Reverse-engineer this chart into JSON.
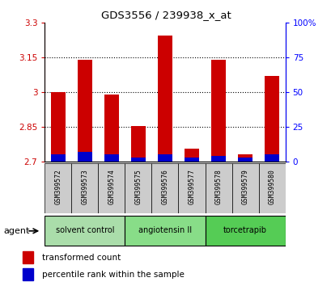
{
  "title": "GDS3556 / 239938_x_at",
  "samples": [
    "GSM399572",
    "GSM399573",
    "GSM399574",
    "GSM399575",
    "GSM399576",
    "GSM399577",
    "GSM399578",
    "GSM399579",
    "GSM399580"
  ],
  "red_values": [
    3.0,
    3.14,
    2.99,
    2.855,
    3.245,
    2.755,
    3.14,
    2.73,
    3.07
  ],
  "blue_values": [
    0.05,
    0.07,
    0.05,
    0.03,
    0.05,
    0.03,
    0.04,
    0.03,
    0.05
  ],
  "ylim_left": [
    2.7,
    3.3
  ],
  "ylim_right": [
    0.0,
    1.0
  ],
  "yticks_left": [
    2.7,
    2.85,
    3.0,
    3.15,
    3.3
  ],
  "yticks_right": [
    0.0,
    0.25,
    0.5,
    0.75,
    1.0
  ],
  "ytick_labels_right": [
    "0",
    "25",
    "50",
    "75",
    "100%"
  ],
  "ytick_labels_left": [
    "2.7",
    "2.85",
    "3",
    "3.15",
    "3.3"
  ],
  "bar_width": 0.55,
  "base_value": 2.7,
  "red_color": "#cc0000",
  "blue_color": "#0000cc",
  "groups": [
    {
      "label": "solvent control",
      "samples": [
        0,
        1,
        2
      ],
      "color": "#aaddaa"
    },
    {
      "label": "angiotensin II",
      "samples": [
        3,
        4,
        5
      ],
      "color": "#88dd88"
    },
    {
      "label": "torcetrapib",
      "samples": [
        6,
        7,
        8
      ],
      "color": "#55cc55"
    }
  ],
  "agent_label": "agent",
  "legend_red": "transformed count",
  "legend_blue": "percentile rank within the sample",
  "bg_sample_label": "#cccccc",
  "dotted_lines": [
    2.85,
    3.0,
    3.15
  ]
}
